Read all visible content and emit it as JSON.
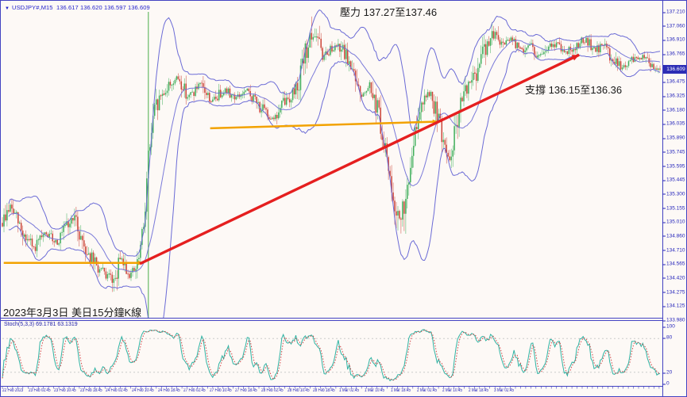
{
  "header": {
    "dropdown_icon": "▼",
    "symbol": "USDJPY#,M15",
    "ohlc": "136.617 136.620 136.597 136.609"
  },
  "annotations": {
    "resistance": "壓力 137.27至137.46",
    "support": "支撐 136.15至136.36",
    "caption": "2023年3月3日 美日15分鐘K線"
  },
  "price_axis": {
    "labels": [
      "137.210",
      "137.060",
      "136.910",
      "136.765",
      "",
      "136.475",
      "136.325",
      "136.180",
      "136.035",
      "135.890",
      "135.745",
      "135.595",
      "135.445",
      "135.300",
      "135.155",
      "135.010",
      "134.860",
      "134.710",
      "134.565",
      "134.420",
      "134.275",
      "134.125",
      "133.980"
    ],
    "badge": "136.609"
  },
  "indicator": {
    "label": "Stoch(5,3,3) 69.1781 63.1319",
    "axis_labels": [
      "100",
      "80",
      "20",
      "0"
    ],
    "k_value": 69.1781,
    "d_value": 63.1319
  },
  "colors": {
    "frame": "#4343c2",
    "axis_text": "#2525bb",
    "up": "#3fae5a",
    "down": "#cc4437",
    "bollinger": "#6b6bd6",
    "stoch_k": "#2fb3a3",
    "stoch_d": "#cf4646",
    "level_line": "#c4c4c4",
    "arrow_orange": "#f2a200",
    "arrow_red": "#e51f1f",
    "badge_bg": "#2d2db5",
    "vline_green": "#2ca02c",
    "background": "#fdf9f6"
  },
  "chart_data": {
    "type": "candlestick",
    "symbol": "USDJPY#",
    "timeframe": "M15",
    "title": "2023年3月3日 美日15分鐘K線",
    "current_ohlc": {
      "open": 136.617,
      "high": 136.62,
      "low": 136.597,
      "close": 136.609
    },
    "y_range": [
      133.98,
      137.27
    ],
    "x_labels": [
      "22 Feb 2023",
      "23 Feb 02:45",
      "23 Feb 10:45",
      "23 Feb 18:45",
      "24 Feb 02:45",
      "24 Feb 10:45",
      "24 Feb 18:45",
      "27 Feb 02:45",
      "27 Feb 10:45",
      "27 Feb 18:45",
      "28 Feb 02:45",
      "28 Feb 10:45",
      "28 Feb 18:45",
      "1 Mar 02:45",
      "1 Mar 10:45",
      "1 Mar 18:45",
      "2 Mar 02:45",
      "2 Mar 10:45",
      "2 Mar 18:45",
      "3 Mar 02:45"
    ],
    "price_path_anchors": [
      [
        0.0,
        135.0
      ],
      [
        0.012,
        135.18
      ],
      [
        0.03,
        134.9
      ],
      [
        0.048,
        134.72
      ],
      [
        0.066,
        134.88
      ],
      [
        0.084,
        134.8
      ],
      [
        0.108,
        135.06
      ],
      [
        0.127,
        134.72
      ],
      [
        0.145,
        134.52
      ],
      [
        0.163,
        134.42
      ],
      [
        0.172,
        134.38
      ],
      [
        0.18,
        134.62
      ],
      [
        0.193,
        134.46
      ],
      [
        0.205,
        134.52
      ],
      [
        0.214,
        134.9
      ],
      [
        0.222,
        135.7
      ],
      [
        0.232,
        136.18
      ],
      [
        0.244,
        136.36
      ],
      [
        0.256,
        136.46
      ],
      [
        0.267,
        136.52
      ],
      [
        0.283,
        136.32
      ],
      [
        0.301,
        136.44
      ],
      [
        0.319,
        136.27
      ],
      [
        0.337,
        136.4
      ],
      [
        0.355,
        136.31
      ],
      [
        0.373,
        136.38
      ],
      [
        0.391,
        136.22
      ],
      [
        0.404,
        136.12
      ],
      [
        0.416,
        136.1
      ],
      [
        0.428,
        136.26
      ],
      [
        0.44,
        136.33
      ],
      [
        0.452,
        136.52
      ],
      [
        0.464,
        136.86
      ],
      [
        0.476,
        137.0
      ],
      [
        0.486,
        136.74
      ],
      [
        0.498,
        136.82
      ],
      [
        0.51,
        136.88
      ],
      [
        0.522,
        136.74
      ],
      [
        0.534,
        136.6
      ],
      [
        0.546,
        136.36
      ],
      [
        0.558,
        136.44
      ],
      [
        0.57,
        136.2
      ],
      [
        0.582,
        135.78
      ],
      [
        0.594,
        135.3
      ],
      [
        0.604,
        135.02
      ],
      [
        0.612,
        135.2
      ],
      [
        0.624,
        135.8
      ],
      [
        0.636,
        136.28
      ],
      [
        0.648,
        136.38
      ],
      [
        0.66,
        136.2
      ],
      [
        0.67,
        135.85
      ],
      [
        0.68,
        135.62
      ],
      [
        0.69,
        136.05
      ],
      [
        0.702,
        136.36
      ],
      [
        0.714,
        136.48
      ],
      [
        0.726,
        136.68
      ],
      [
        0.738,
        136.9
      ],
      [
        0.75,
        137.0
      ],
      [
        0.762,
        136.86
      ],
      [
        0.774,
        136.93
      ],
      [
        0.788,
        136.8
      ],
      [
        0.802,
        136.88
      ],
      [
        0.816,
        136.73
      ],
      [
        0.83,
        136.83
      ],
      [
        0.844,
        136.88
      ],
      [
        0.858,
        136.78
      ],
      [
        0.872,
        136.86
      ],
      [
        0.886,
        136.92
      ],
      [
        0.9,
        136.8
      ],
      [
        0.914,
        136.86
      ],
      [
        0.928,
        136.72
      ],
      [
        0.942,
        136.62
      ],
      [
        0.956,
        136.7
      ],
      [
        0.972,
        136.74
      ],
      [
        0.986,
        136.66
      ],
      [
        1.0,
        136.609
      ]
    ],
    "overlays": {
      "bollinger_bands": {
        "period": 20,
        "deviation": 2,
        "color": "#6b6bd6"
      },
      "trend_arrows": [
        {
          "name": "support-arrow-left",
          "color": "#f2a200",
          "width": 2.5,
          "from": [
            0.002,
            134.58
          ],
          "to": [
            0.214,
            134.58
          ]
        },
        {
          "name": "support-arrow-mid",
          "color": "#f2a200",
          "width": 2.5,
          "from": [
            0.316,
            135.99
          ],
          "to": [
            0.662,
            136.06
          ]
        },
        {
          "name": "uptrend-arrow",
          "color": "#e51f1f",
          "width": 3.4,
          "from": [
            0.209,
            134.57
          ],
          "to": [
            0.877,
            136.76
          ]
        }
      ],
      "vertical_line": {
        "t": 0.222,
        "color": "#2ca02c"
      }
    },
    "sub_indicator": {
      "type": "stochastic",
      "name": "Stoch(5,3,3)",
      "k": 69.1781,
      "d": 63.1319,
      "range": [
        0,
        100
      ],
      "levels": [
        80,
        20
      ]
    }
  }
}
